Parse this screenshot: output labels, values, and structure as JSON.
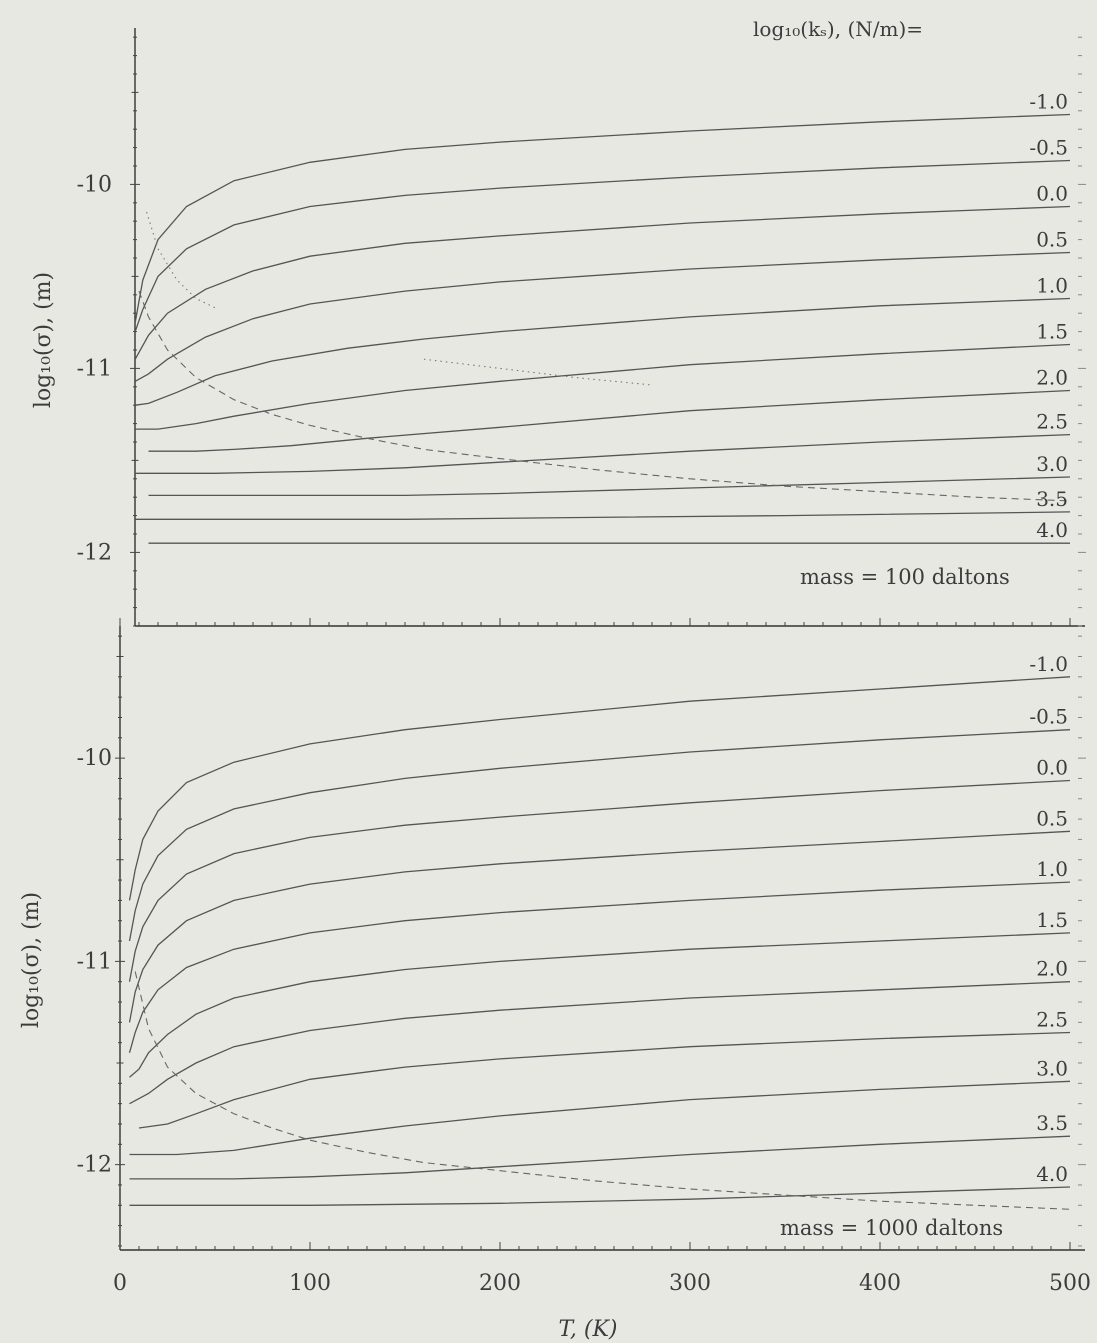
{
  "chart_data": [
    {
      "type": "line",
      "panel": "top",
      "ylabel": "log₁₀(σ), (m)",
      "xlabel": "",
      "ylim": [
        -12.4,
        -9.15
      ],
      "xlim": [
        0,
        500
      ],
      "yticks": [
        "-10",
        "-11",
        "-12"
      ],
      "header": "log₁₀(kₛ), (N/m)=",
      "annotation": "mass = 100 daltons",
      "curve_labels": [
        "-1.0",
        "-0.5",
        "0.0",
        "0.5",
        "1.0",
        "1.5",
        "2.0",
        "2.5",
        "3.0",
        "3.5",
        "4.0"
      ],
      "series": [
        {
          "name": "-1.0",
          "x": [
            8,
            12,
            20,
            35,
            60,
            100,
            150,
            200,
            300,
            400,
            500
          ],
          "y": [
            -10.75,
            -10.52,
            -10.3,
            -10.12,
            -9.98,
            -9.88,
            -9.81,
            -9.77,
            -9.71,
            -9.66,
            -9.62
          ]
        },
        {
          "name": "-0.5",
          "x": [
            8,
            12,
            20,
            35,
            60,
            100,
            150,
            200,
            300,
            400,
            500
          ],
          "y": [
            -10.8,
            -10.68,
            -10.5,
            -10.35,
            -10.22,
            -10.12,
            -10.06,
            -10.02,
            -9.96,
            -9.91,
            -9.87
          ]
        },
        {
          "name": "0.0",
          "x": [
            8,
            15,
            25,
            45,
            70,
            100,
            150,
            200,
            300,
            400,
            500
          ],
          "y": [
            -10.95,
            -10.82,
            -10.7,
            -10.57,
            -10.47,
            -10.39,
            -10.32,
            -10.28,
            -10.21,
            -10.16,
            -10.12
          ]
        },
        {
          "name": "0.5",
          "x": [
            8,
            15,
            25,
            45,
            70,
            100,
            150,
            200,
            300,
            400,
            500
          ],
          "y": [
            -11.07,
            -11.03,
            -10.95,
            -10.83,
            -10.73,
            -10.65,
            -10.58,
            -10.53,
            -10.46,
            -10.41,
            -10.37
          ]
        },
        {
          "name": "1.0",
          "x": [
            8,
            15,
            30,
            50,
            80,
            120,
            160,
            200,
            300,
            400,
            500
          ],
          "y": [
            -11.2,
            -11.19,
            -11.13,
            -11.04,
            -10.96,
            -10.89,
            -10.84,
            -10.8,
            -10.72,
            -10.66,
            -10.62
          ]
        },
        {
          "name": "1.5",
          "x": [
            8,
            20,
            40,
            60,
            100,
            150,
            200,
            300,
            400,
            500
          ],
          "y": [
            -11.33,
            -11.33,
            -11.3,
            -11.26,
            -11.19,
            -11.12,
            -11.07,
            -10.98,
            -10.92,
            -10.87
          ]
        },
        {
          "name": "2.0",
          "x": [
            15,
            40,
            60,
            90,
            130,
            200,
            300,
            400,
            500
          ],
          "y": [
            -11.45,
            -11.45,
            -11.44,
            -11.42,
            -11.38,
            -11.32,
            -11.23,
            -11.17,
            -11.12
          ]
        },
        {
          "name": "2.5",
          "x": [
            8,
            50,
            100,
            150,
            200,
            300,
            400,
            500
          ],
          "y": [
            -11.57,
            -11.57,
            -11.56,
            -11.54,
            -11.51,
            -11.45,
            -11.4,
            -11.36
          ]
        },
        {
          "name": "3.0",
          "x": [
            15,
            100,
            150,
            200,
            300,
            400,
            500
          ],
          "y": [
            -11.69,
            -11.69,
            -11.69,
            -11.68,
            -11.65,
            -11.62,
            -11.59
          ]
        },
        {
          "name": "3.5",
          "x": [
            8,
            150,
            250,
            350,
            500
          ],
          "y": [
            -11.82,
            -11.82,
            -11.81,
            -11.8,
            -11.78
          ]
        },
        {
          "name": "4.0",
          "x": [
            15,
            200,
            350,
            500
          ],
          "y": [
            -11.95,
            -11.95,
            -11.95,
            -11.95
          ]
        }
      ],
      "dashed": {
        "x": [
          10,
          15,
          25,
          40,
          60,
          80,
          100,
          130,
          160,
          200,
          250,
          300,
          350,
          400,
          450,
          500
        ],
        "y": [
          -10.58,
          -10.72,
          -10.9,
          -11.05,
          -11.17,
          -11.25,
          -11.31,
          -11.38,
          -11.44,
          -11.49,
          -11.55,
          -11.6,
          -11.64,
          -11.67,
          -11.7,
          -11.72
        ]
      },
      "dotted": [
        {
          "x": [
            14,
            20,
            30,
            40,
            50
          ],
          "y": [
            -10.15,
            -10.35,
            -10.52,
            -10.62,
            -10.67
          ]
        },
        {
          "x": [
            160,
            200,
            240,
            280
          ],
          "y": [
            -10.95,
            -11.0,
            -11.05,
            -11.09
          ]
        }
      ]
    },
    {
      "type": "line",
      "panel": "bottom",
      "ylabel": "log₁₀(σ), (m)",
      "xlabel": "T, (K)",
      "ylim": [
        -12.42,
        -9.35
      ],
      "xlim": [
        0,
        500
      ],
      "xticks": [
        "0",
        "100",
        "200",
        "300",
        "400",
        "500"
      ],
      "yticks": [
        "-10",
        "-11",
        "-12"
      ],
      "annotation": "mass = 1000 daltons",
      "curve_labels": [
        "-1.0",
        "-0.5",
        "0.0",
        "0.5",
        "1.0",
        "1.5",
        "2.0",
        "2.5",
        "3.0",
        "3.5",
        "4.0"
      ],
      "series": [
        {
          "name": "-1.0",
          "x": [
            5,
            8,
            12,
            20,
            35,
            60,
            100,
            150,
            200,
            300,
            400,
            500
          ],
          "y": [
            -10.7,
            -10.55,
            -10.4,
            -10.26,
            -10.12,
            -10.02,
            -9.93,
            -9.86,
            -9.81,
            -9.72,
            -9.66,
            -9.6
          ]
        },
        {
          "name": "-0.5",
          "x": [
            5,
            8,
            12,
            20,
            35,
            60,
            100,
            150,
            200,
            300,
            400,
            500
          ],
          "y": [
            -10.9,
            -10.75,
            -10.62,
            -10.48,
            -10.35,
            -10.25,
            -10.17,
            -10.1,
            -10.05,
            -9.97,
            -9.91,
            -9.86
          ]
        },
        {
          "name": "0.0",
          "x": [
            5,
            8,
            12,
            20,
            35,
            60,
            100,
            150,
            200,
            300,
            400,
            500
          ],
          "y": [
            -11.1,
            -10.95,
            -10.83,
            -10.7,
            -10.57,
            -10.47,
            -10.39,
            -10.33,
            -10.29,
            -10.22,
            -10.16,
            -10.11
          ]
        },
        {
          "name": "0.5",
          "x": [
            5,
            8,
            12,
            20,
            35,
            60,
            100,
            150,
            200,
            300,
            400,
            500
          ],
          "y": [
            -11.3,
            -11.15,
            -11.04,
            -10.92,
            -10.8,
            -10.7,
            -10.62,
            -10.56,
            -10.52,
            -10.46,
            -10.41,
            -10.36
          ]
        },
        {
          "name": "1.0",
          "x": [
            5,
            8,
            12,
            20,
            35,
            60,
            100,
            150,
            200,
            300,
            400,
            500
          ],
          "y": [
            -11.45,
            -11.35,
            -11.25,
            -11.14,
            -11.03,
            -10.94,
            -10.86,
            -10.8,
            -10.76,
            -10.7,
            -10.65,
            -10.61
          ]
        },
        {
          "name": "1.5",
          "x": [
            5,
            10,
            15,
            25,
            40,
            60,
            100,
            150,
            200,
            300,
            400,
            500
          ],
          "y": [
            -11.57,
            -11.53,
            -11.45,
            -11.36,
            -11.26,
            -11.18,
            -11.1,
            -11.04,
            -11.0,
            -10.94,
            -10.9,
            -10.86
          ]
        },
        {
          "name": "2.0",
          "x": [
            5,
            15,
            25,
            40,
            60,
            100,
            150,
            200,
            300,
            400,
            500
          ],
          "y": [
            -11.7,
            -11.65,
            -11.58,
            -11.5,
            -11.42,
            -11.34,
            -11.28,
            -11.24,
            -11.18,
            -11.14,
            -11.1
          ]
        },
        {
          "name": "2.5",
          "x": [
            10,
            25,
            40,
            60,
            100,
            150,
            200,
            300,
            400,
            500
          ],
          "y": [
            -11.82,
            -11.8,
            -11.75,
            -11.68,
            -11.58,
            -11.52,
            -11.48,
            -11.42,
            -11.38,
            -11.35
          ]
        },
        {
          "name": "3.0",
          "x": [
            5,
            30,
            60,
            100,
            150,
            200,
            300,
            400,
            500
          ],
          "y": [
            -11.95,
            -11.95,
            -11.93,
            -11.87,
            -11.81,
            -11.76,
            -11.68,
            -11.63,
            -11.59
          ]
        },
        {
          "name": "3.5",
          "x": [
            5,
            60,
            100,
            150,
            200,
            300,
            400,
            500
          ],
          "y": [
            -12.07,
            -12.07,
            -12.06,
            -12.04,
            -12.01,
            -11.95,
            -11.9,
            -11.86
          ]
        },
        {
          "name": "4.0",
          "x": [
            5,
            100,
            200,
            300,
            400,
            500
          ],
          "y": [
            -12.2,
            -12.2,
            -12.19,
            -12.17,
            -12.14,
            -12.11
          ]
        }
      ],
      "dashed": {
        "x": [
          8,
          15,
          25,
          40,
          60,
          80,
          100,
          130,
          160,
          200,
          250,
          300,
          350,
          400,
          450,
          500
        ],
        "y": [
          -11.05,
          -11.33,
          -11.52,
          -11.65,
          -11.75,
          -11.82,
          -11.88,
          -11.94,
          -11.99,
          -12.03,
          -12.08,
          -12.12,
          -12.15,
          -12.18,
          -12.2,
          -12.22
        ]
      }
    }
  ]
}
